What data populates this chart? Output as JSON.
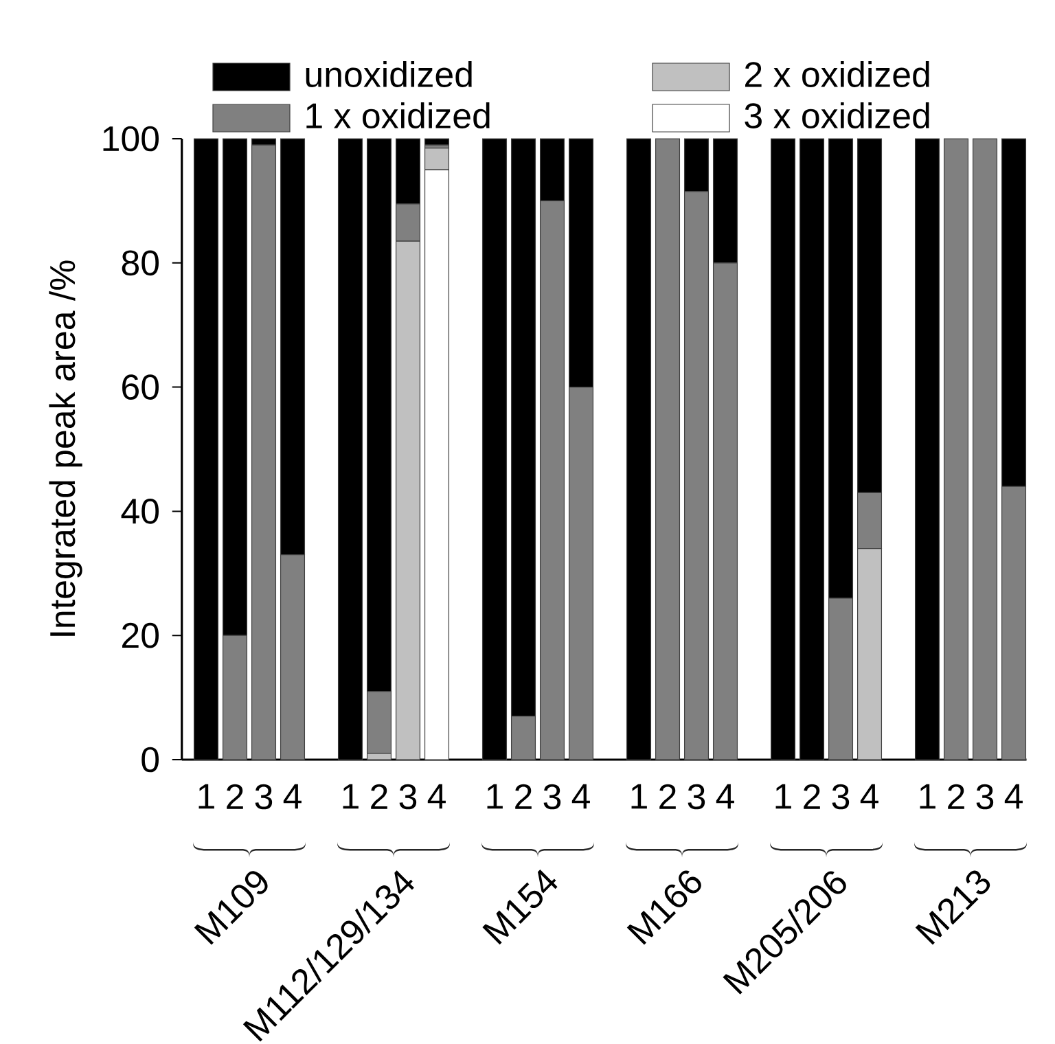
{
  "chart_data": {
    "type": "bar",
    "stacked": true,
    "ylabel": "Integrated peak area /%",
    "categories": [
      "1",
      "2",
      "3",
      "4",
      "1",
      "2",
      "3",
      "4",
      "1",
      "2",
      "3",
      "4",
      "1",
      "2",
      "3",
      "4",
      "1",
      "2",
      "3",
      "4",
      "1",
      "2",
      "3",
      "4"
    ],
    "series": [
      {
        "name": "3 x oxidized",
        "color": "#ffffff",
        "values": [
          0,
          0,
          0,
          0,
          0,
          0,
          0,
          95,
          0,
          0,
          0,
          0,
          0,
          0,
          0,
          0,
          0,
          0,
          0,
          0,
          0,
          0,
          0,
          0
        ]
      },
      {
        "name": "2 x oxidized",
        "color": "#c0c0c0",
        "values": [
          0,
          0,
          0,
          0,
          0,
          1,
          83.5,
          3.5,
          0,
          0,
          0,
          0,
          0,
          0,
          0,
          0,
          0,
          0,
          0,
          34,
          0,
          0,
          0,
          0
        ]
      },
      {
        "name": "1 x oxidized",
        "color": "#808080",
        "values": [
          0,
          20,
          99,
          33,
          0,
          10,
          6,
          0.5,
          0,
          7,
          90,
          60,
          0,
          100,
          91.5,
          80,
          0,
          0,
          26,
          9,
          0,
          100,
          100,
          44
        ]
      },
      {
        "name": "unoxidized",
        "color": "#000000",
        "values": [
          100,
          80,
          1,
          67,
          100,
          89,
          10.5,
          1,
          100,
          93,
          10,
          40,
          100,
          0,
          8.5,
          20,
          100,
          100,
          74,
          57,
          100,
          0,
          0,
          56
        ]
      }
    ],
    "ylim": [
      0,
      100
    ],
    "yticks": [
      0,
      20,
      40,
      60,
      80,
      100
    ],
    "grid": false,
    "legend": "top",
    "annotations": [
      "M109",
      "M112/129/134",
      "M154",
      "M166",
      "M205/206",
      "M213"
    ]
  }
}
